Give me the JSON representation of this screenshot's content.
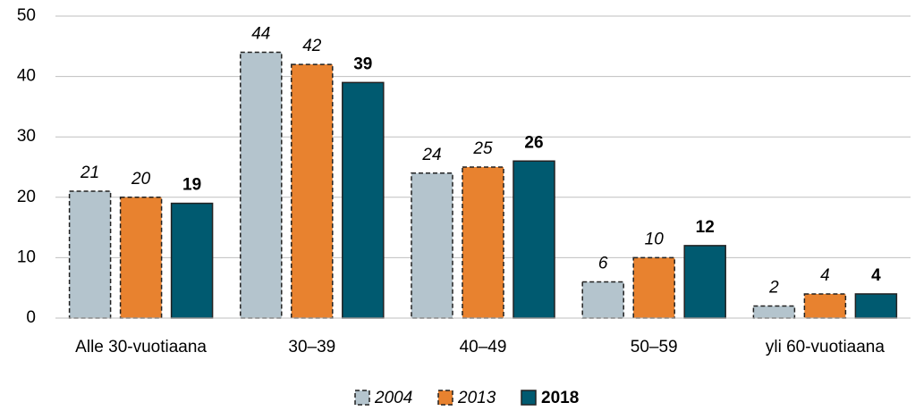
{
  "chart_data": {
    "type": "bar",
    "categories": [
      "Alle 30-vuotiaana",
      "30–39",
      "40–49",
      "50–59",
      "yli 60-vuotiaana"
    ],
    "series": [
      {
        "name": "2004",
        "color": "#b4c4cd",
        "values": [
          21,
          44,
          24,
          6,
          2
        ],
        "border": "dashed",
        "label_font": "italic"
      },
      {
        "name": "2013",
        "color": "#e8822f",
        "values": [
          20,
          42,
          25,
          10,
          4
        ],
        "border": "dashed",
        "label_font": "italic"
      },
      {
        "name": "2018",
        "color": "#005a70",
        "values": [
          19,
          39,
          26,
          12,
          4
        ],
        "border": "solid",
        "label_font": "bold"
      }
    ],
    "ylim": [
      0,
      50
    ],
    "yticks": [
      0,
      10,
      20,
      30,
      40,
      50
    ],
    "grid": true,
    "legend": "bottom"
  }
}
